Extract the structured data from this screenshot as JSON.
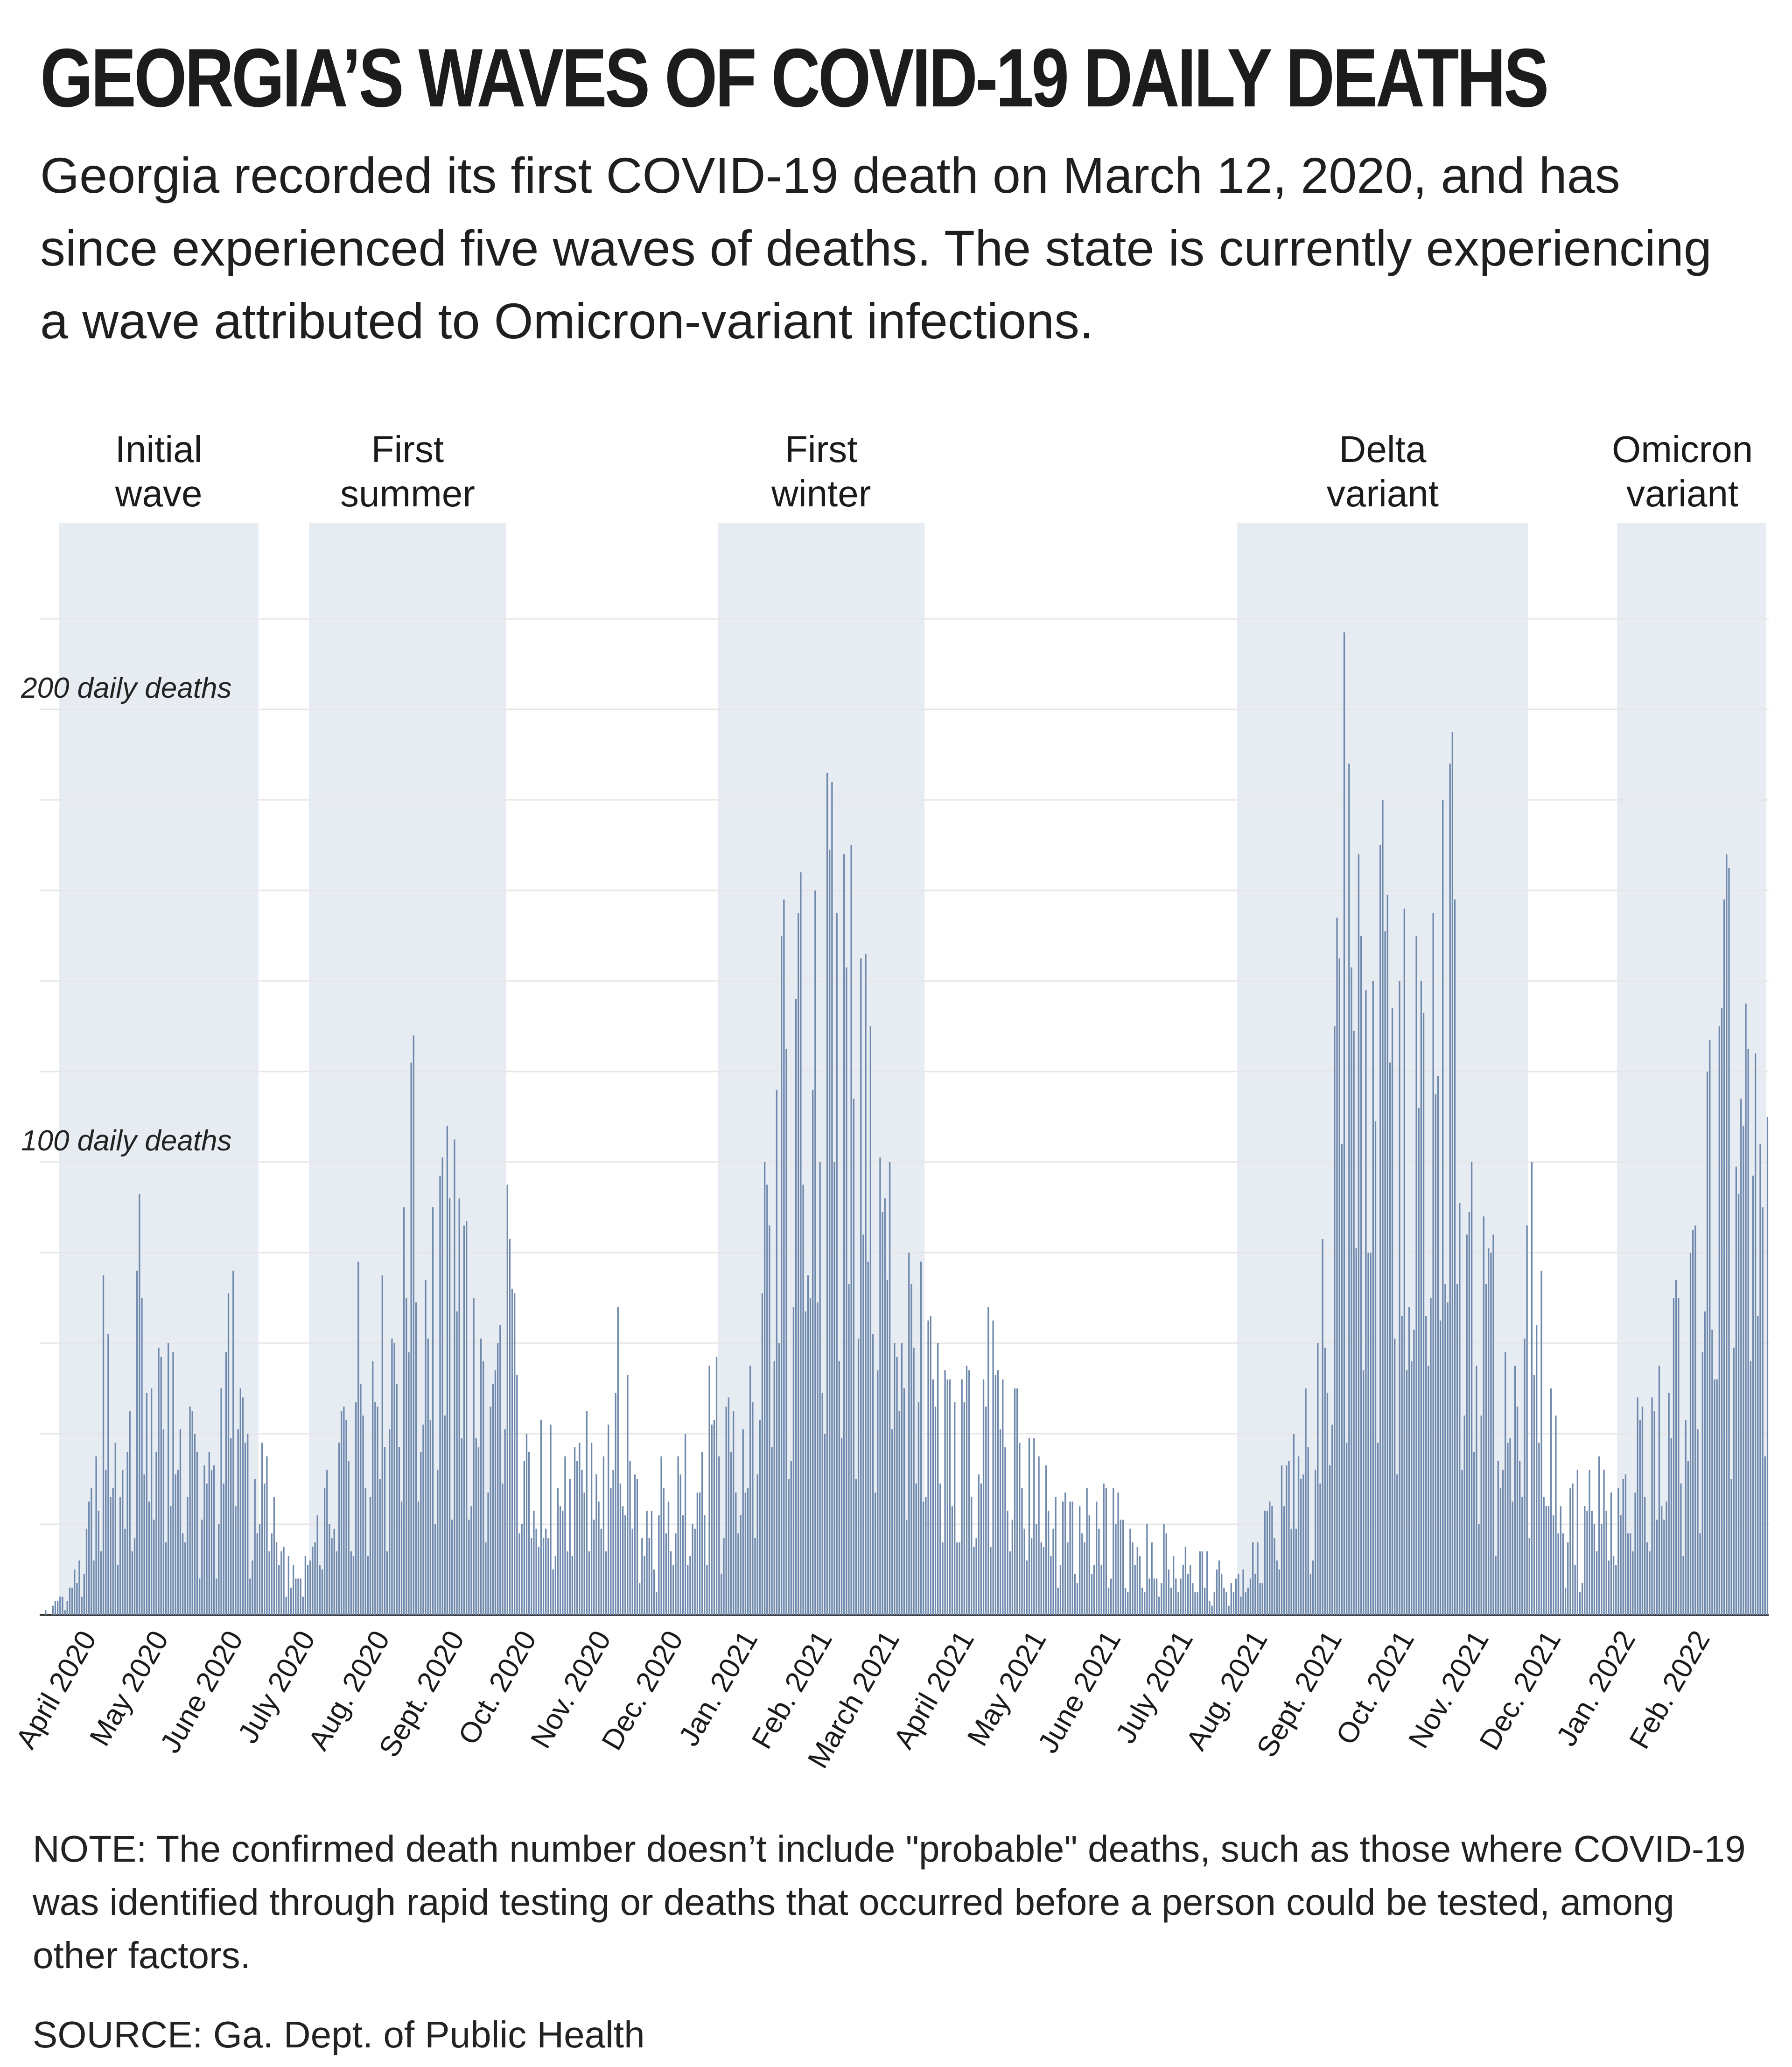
{
  "title": "GEORGIA’S WAVES OF COVID-19 DAILY DEATHS",
  "subtitle": "Georgia recorded its first COVID-19 death on March 12, 2020, and has since experienced five waves of deaths. The state is currently experiencing a wave attributed to Omicron-variant infections.",
  "note": "NOTE: The confirmed death number doesn’t include \"probable\" deaths, such as those where COVID-19 was identified through rapid testing or deaths that occurred before a person could be tested, among other factors.",
  "source": "SOURCE: Ga. Dept. of Public Health",
  "colors": {
    "bar": "#6f89ad",
    "band": "#e7ecf3",
    "grid": "#e6e6e6",
    "text": "#1a1a1a"
  },
  "chart_data": {
    "type": "bar",
    "title": "Georgia's waves of COVID-19 daily deaths",
    "ylabel": "Daily deaths",
    "ylim": [
      0,
      220
    ],
    "y_annotations": [
      {
        "value": 200,
        "label": "200 daily deaths"
      },
      {
        "value": 100,
        "label": "100 daily deaths"
      }
    ],
    "x_start_date": "2020-03-12",
    "x_end_date": "2022-02-28",
    "x_tick_labels": [
      {
        "date": "2020-04-01",
        "label": "April 2020"
      },
      {
        "date": "2020-05-01",
        "label": "May 2020"
      },
      {
        "date": "2020-06-01",
        "label": "June 2020"
      },
      {
        "date": "2020-07-01",
        "label": "July 2020"
      },
      {
        "date": "2020-08-01",
        "label": "Aug. 2020"
      },
      {
        "date": "2020-09-01",
        "label": "Sept. 2020"
      },
      {
        "date": "2020-10-01",
        "label": "Oct. 2020"
      },
      {
        "date": "2020-11-01",
        "label": "Nov. 2020"
      },
      {
        "date": "2020-12-01",
        "label": "Dec. 2020"
      },
      {
        "date": "2021-01-01",
        "label": "Jan. 2021"
      },
      {
        "date": "2021-02-01",
        "label": "Feb. 2021"
      },
      {
        "date": "2021-03-01",
        "label": "March 2021"
      },
      {
        "date": "2021-04-01",
        "label": "April 2021"
      },
      {
        "date": "2021-05-01",
        "label": "May 2021"
      },
      {
        "date": "2021-06-01",
        "label": "June 2021"
      },
      {
        "date": "2021-07-01",
        "label": "July 2021"
      },
      {
        "date": "2021-08-01",
        "label": "Aug. 2021"
      },
      {
        "date": "2021-09-01",
        "label": "Sept. 2021"
      },
      {
        "date": "2021-10-01",
        "label": "Oct. 2021"
      },
      {
        "date": "2021-11-01",
        "label": "Nov. 2021"
      },
      {
        "date": "2021-12-01",
        "label": "Dec. 2021"
      },
      {
        "date": "2022-01-01",
        "label": "Jan. 2022"
      },
      {
        "date": "2022-02-01",
        "label": "Feb. 2022"
      }
    ],
    "waves": [
      {
        "line1": "Initial",
        "line2": "wave",
        "start": "2020-03-20",
        "end": "2020-06-11"
      },
      {
        "line1": "First",
        "line2": "summer",
        "start": "2020-07-02",
        "end": "2020-09-22"
      },
      {
        "line1": "First",
        "line2": "winter",
        "start": "2020-12-19",
        "end": "2021-03-15"
      },
      {
        "line1": "Delta",
        "line2": "variant",
        "start": "2021-07-23",
        "end": "2021-11-21"
      },
      {
        "line1": "Omicron",
        "line2": "variant",
        "start": "2021-12-28",
        "end": "2022-02-28"
      }
    ],
    "anchor_points_note": "Approximate daily death counts read from the chart; values between anchors are interpolated, with day-to-day reporting variation.",
    "anchor_points": [
      [
        "2020-03-12",
        0
      ],
      [
        "2020-03-20",
        4
      ],
      [
        "2020-03-28",
        12
      ],
      [
        "2020-04-04",
        35
      ],
      [
        "2020-04-07",
        75
      ],
      [
        "2020-04-12",
        38
      ],
      [
        "2020-04-18",
        45
      ],
      [
        "2020-04-22",
        93
      ],
      [
        "2020-04-27",
        50
      ],
      [
        "2020-05-04",
        60
      ],
      [
        "2020-05-15",
        40
      ],
      [
        "2020-05-26",
        50
      ],
      [
        "2020-05-31",
        76
      ],
      [
        "2020-06-06",
        40
      ],
      [
        "2020-06-14",
        35
      ],
      [
        "2020-06-21",
        15
      ],
      [
        "2020-06-28",
        8
      ],
      [
        "2020-07-05",
        22
      ],
      [
        "2020-07-15",
        45
      ],
      [
        "2020-07-22",
        78
      ],
      [
        "2020-08-01",
        75
      ],
      [
        "2020-08-10",
        90
      ],
      [
        "2020-08-13",
        122
      ],
      [
        "2020-08-22",
        90
      ],
      [
        "2020-08-31",
        105
      ],
      [
        "2020-09-08",
        70
      ],
      [
        "2020-09-18",
        60
      ],
      [
        "2020-09-22",
        95
      ],
      [
        "2020-09-30",
        40
      ],
      [
        "2020-10-10",
        42
      ],
      [
        "2020-10-18",
        30
      ],
      [
        "2020-10-25",
        45
      ],
      [
        "2020-11-01",
        35
      ],
      [
        "2020-11-07",
        68
      ],
      [
        "2020-11-15",
        30
      ],
      [
        "2020-11-25",
        35
      ],
      [
        "2020-12-05",
        40
      ],
      [
        "2020-12-15",
        55
      ],
      [
        "2020-12-25",
        45
      ],
      [
        "2021-01-01",
        55
      ],
      [
        "2021-01-07",
        100
      ],
      [
        "2021-01-14",
        150
      ],
      [
        "2021-01-21",
        155
      ],
      [
        "2021-01-28",
        160
      ],
      [
        "2021-02-04",
        184
      ],
      [
        "2021-02-12",
        170
      ],
      [
        "2021-02-20",
        130
      ],
      [
        "2021-02-28",
        100
      ],
      [
        "2021-03-08",
        80
      ],
      [
        "2021-03-20",
        60
      ],
      [
        "2021-04-01",
        55
      ],
      [
        "2021-04-12",
        65
      ],
      [
        "2021-04-22",
        50
      ],
      [
        "2021-05-01",
        35
      ],
      [
        "2021-05-15",
        25
      ],
      [
        "2021-06-01",
        28
      ],
      [
        "2021-06-15",
        20
      ],
      [
        "2021-07-01",
        15
      ],
      [
        "2021-07-15",
        12
      ],
      [
        "2021-07-25",
        10
      ],
      [
        "2021-08-05",
        25
      ],
      [
        "2021-08-15",
        40
      ],
      [
        "2021-08-25",
        60
      ],
      [
        "2021-09-01",
        130
      ],
      [
        "2021-09-05",
        217
      ],
      [
        "2021-09-12",
        150
      ],
      [
        "2021-09-20",
        170
      ],
      [
        "2021-09-28",
        140
      ],
      [
        "2021-10-05",
        150
      ],
      [
        "2021-10-12",
        155
      ],
      [
        "2021-10-19",
        188
      ],
      [
        "2021-10-28",
        100
      ],
      [
        "2021-11-05",
        80
      ],
      [
        "2021-11-15",
        55
      ],
      [
        "2021-11-22",
        100
      ],
      [
        "2021-11-30",
        50
      ],
      [
        "2021-12-08",
        28
      ],
      [
        "2021-12-20",
        35
      ],
      [
        "2021-12-28",
        28
      ],
      [
        "2022-01-05",
        48
      ],
      [
        "2022-01-12",
        45
      ],
      [
        "2022-01-20",
        70
      ],
      [
        "2022-01-28",
        85
      ],
      [
        "2022-02-03",
        120
      ],
      [
        "2022-02-08",
        130
      ],
      [
        "2022-02-12",
        165
      ],
      [
        "2022-02-20",
        125
      ],
      [
        "2022-02-28",
        110
      ]
    ]
  }
}
